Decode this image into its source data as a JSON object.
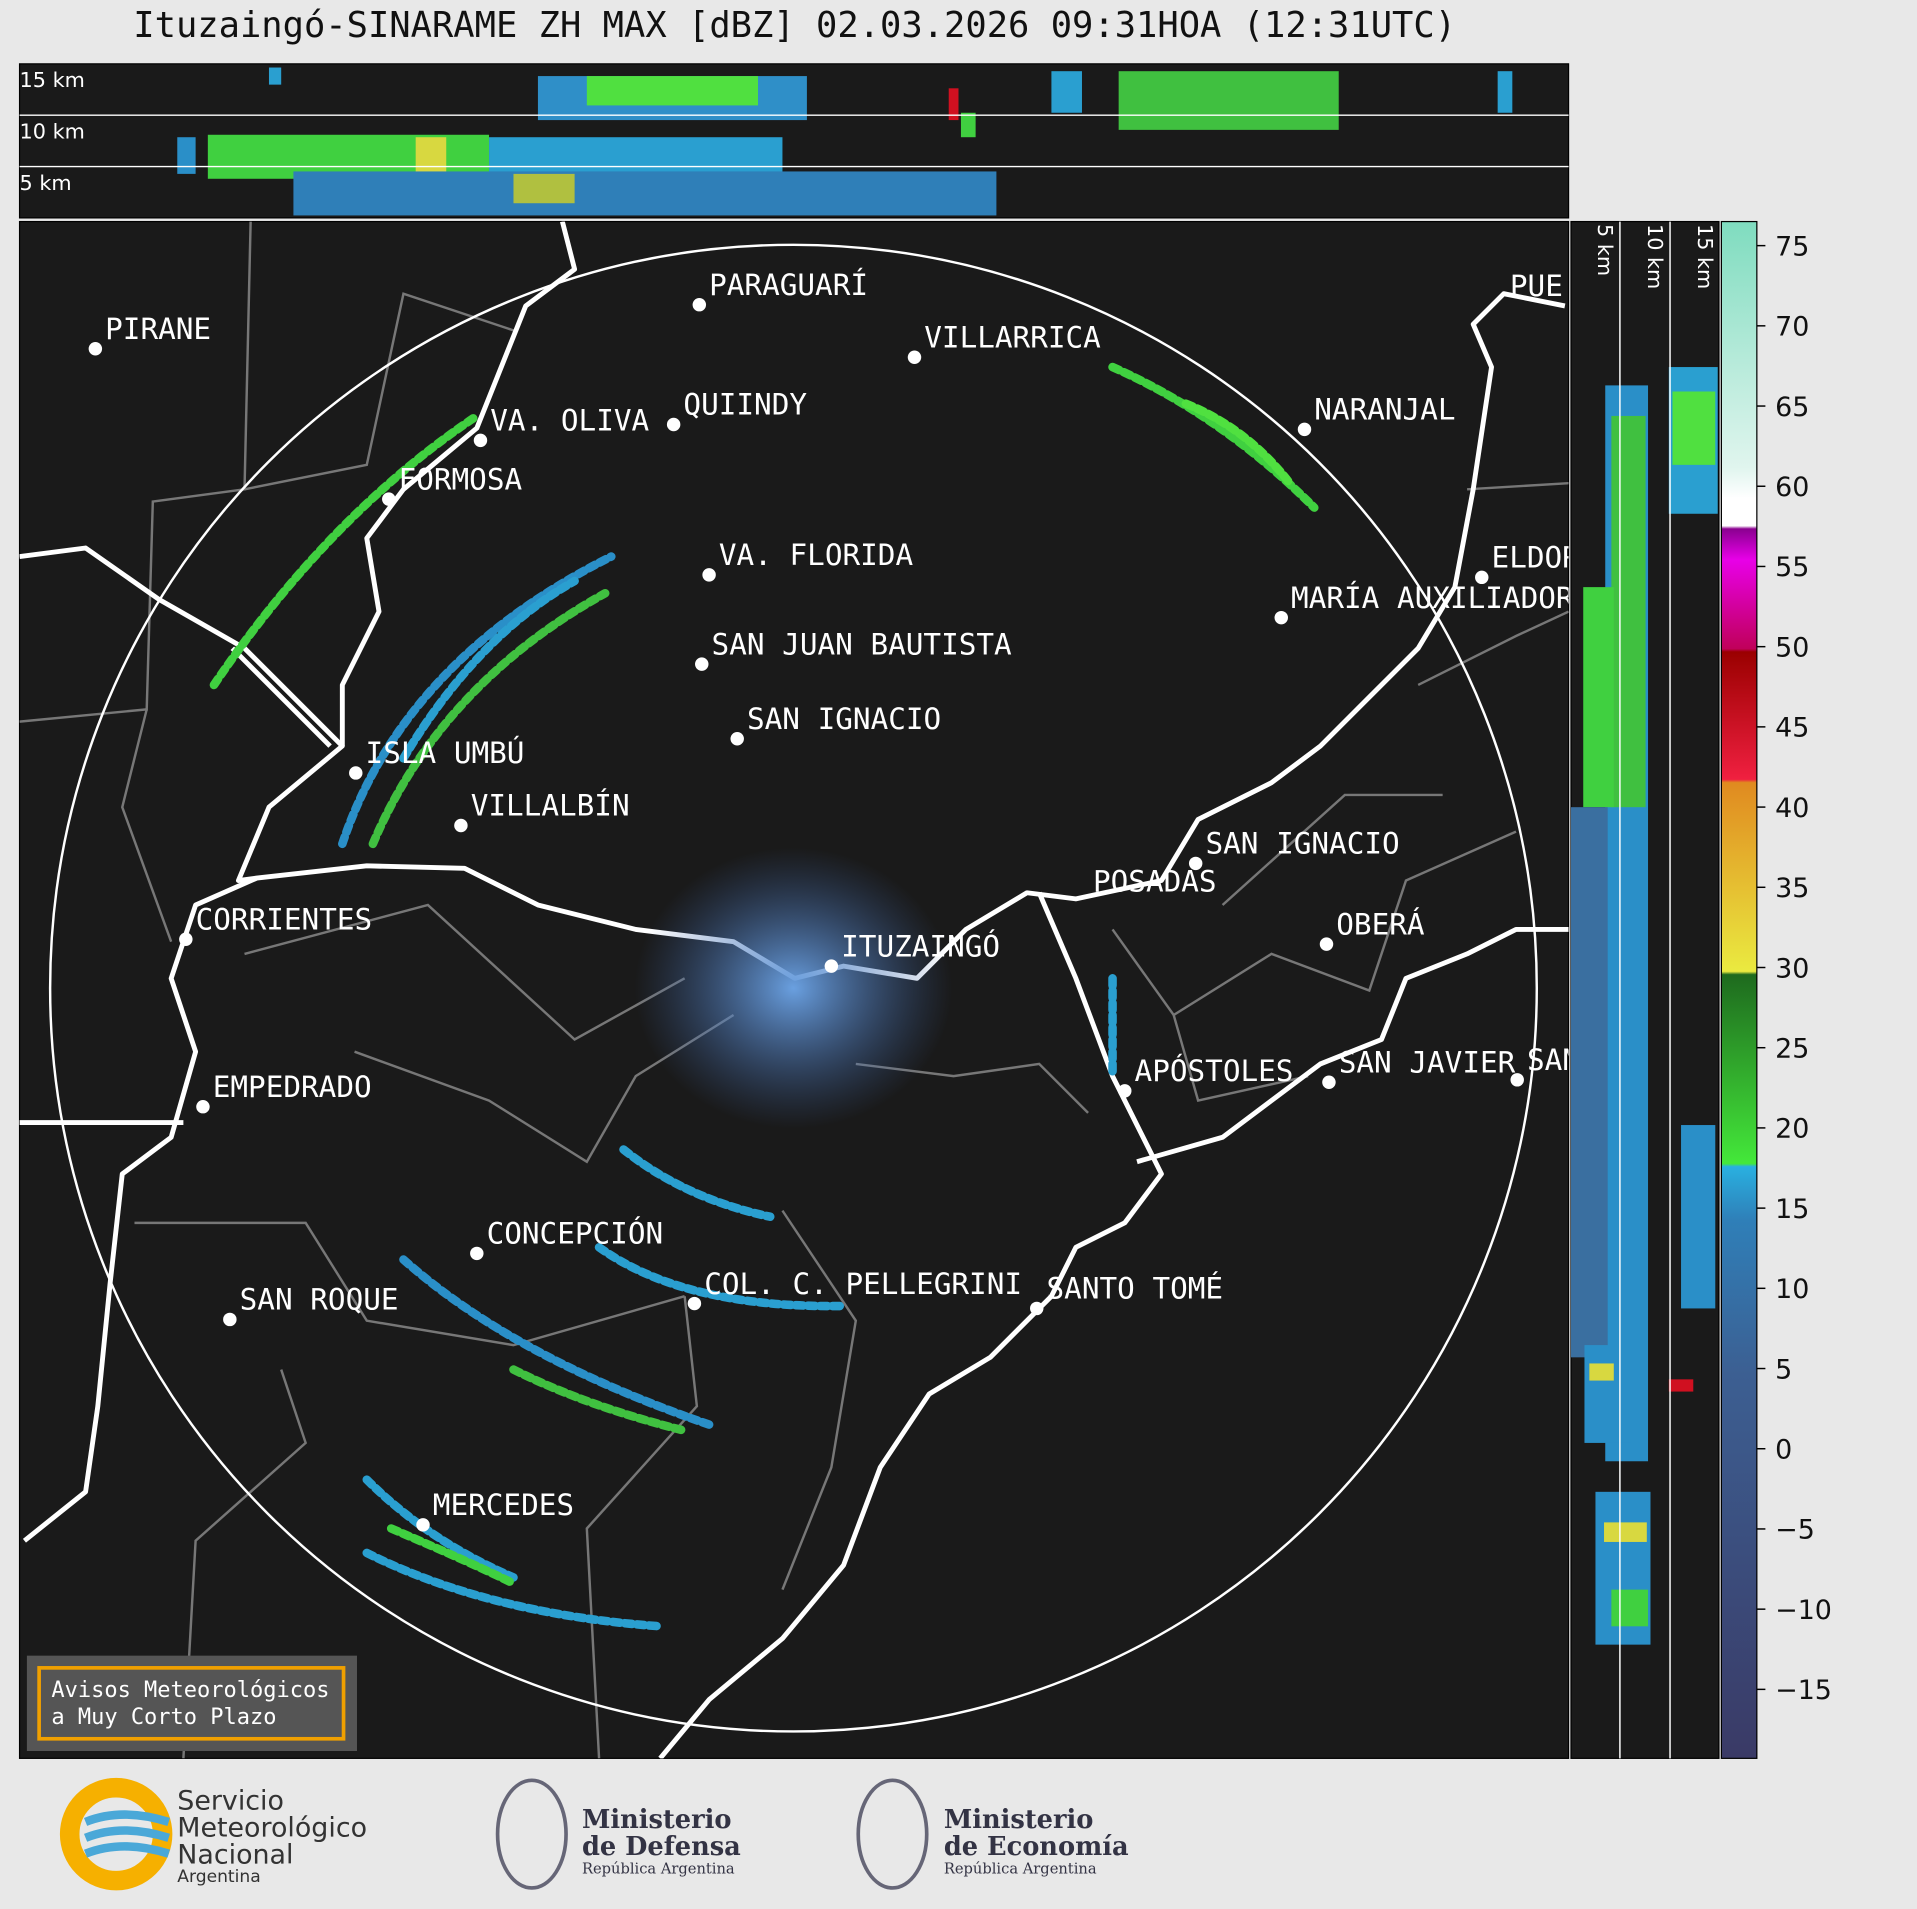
{
  "title": "Ituzaingó-SINARAME ZH MAX [dBZ] 02.03.2026 09:31HOA (12:31UTC)",
  "top_panel": {
    "height_labels": [
      "15 km",
      "10 km",
      "5 km"
    ]
  },
  "side_panel": {
    "height_labels": [
      "5 km",
      "10 km",
      "15 km"
    ]
  },
  "cities": [
    {
      "name": "PIRANE"
    },
    {
      "name": "PARAGUARÍ"
    },
    {
      "name": "VILLARRICA"
    },
    {
      "name": "VA. OLIVA"
    },
    {
      "name": "QUIINDY"
    },
    {
      "name": "NARANJAL"
    },
    {
      "name": "FORMOSA"
    },
    {
      "name": "VA. FLORIDA"
    },
    {
      "name": "MARÍA AUXILIADOR"
    },
    {
      "name": "ELDOR"
    },
    {
      "name": "PUE"
    },
    {
      "name": "SAN JUAN BAUTISTA"
    },
    {
      "name": "SAN IGNACIO"
    },
    {
      "name": "ISLA UMBÚ"
    },
    {
      "name": "VILLALBÍN"
    },
    {
      "name": "SAN IGNACIO"
    },
    {
      "name": "POSADAS"
    },
    {
      "name": "CORRIENTES"
    },
    {
      "name": "ITUZAINGÓ"
    },
    {
      "name": "OBERÁ"
    },
    {
      "name": "APÓSTOLES"
    },
    {
      "name": "SAN JAVIER"
    },
    {
      "name": "SAN"
    },
    {
      "name": "EMPEDRADO"
    },
    {
      "name": "CONCEPCIÓN"
    },
    {
      "name": "COL. C. PELLEGRINI"
    },
    {
      "name": "SANTO TOMÉ"
    },
    {
      "name": "SAN ROQUE"
    },
    {
      "name": "MERCEDES"
    }
  ],
  "warning_box": {
    "lines": [
      "Avisos Meteorológicos",
      "a Muy Corto Plazo"
    ]
  },
  "colorbar": {
    "lim": [
      -19.3,
      76.5
    ],
    "ticks": [
      75,
      70,
      65,
      60,
      55,
      50,
      45,
      40,
      35,
      30,
      25,
      20,
      15,
      10,
      5,
      0,
      {
        "value": -5,
        "label": "−5"
      },
      {
        "value": -10,
        "label": "−10"
      },
      {
        "value": -15,
        "label": "−15"
      }
    ]
  },
  "logos": {
    "smn": [
      "Servicio",
      "Meteorológico",
      "Nacional",
      "Argentina"
    ],
    "defensa": [
      "Ministerio",
      "de Defensa",
      "República Argentina"
    ],
    "economia": [
      "Ministerio",
      "de Economía",
      "República Argentina"
    ]
  }
}
